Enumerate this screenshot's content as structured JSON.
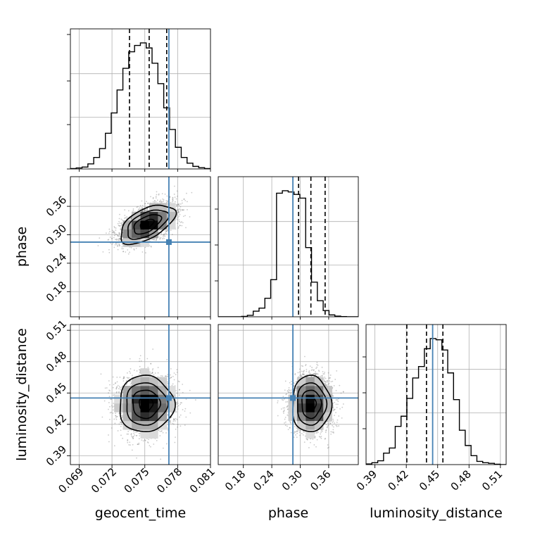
{
  "chart_data": {
    "type": "corner",
    "parameters": [
      "geocent_time",
      "phase",
      "luminosity_distance"
    ],
    "truth_color": "#4682b4",
    "hist_color": "#000000",
    "grid": true,
    "axes": {
      "geocent_time": {
        "label": "geocent_time",
        "range": [
          0.0682,
          0.081
        ],
        "ticks": [
          0.069,
          0.072,
          0.075,
          0.078,
          0.081
        ],
        "tick_labels": [
          "0.069",
          "0.072",
          "0.075",
          "0.078",
          "0.081"
        ],
        "truth": 0.0772
      },
      "phase": {
        "label": "phase",
        "range": [
          0.127,
          0.4225
        ],
        "ticks": [
          0.18,
          0.24,
          0.3,
          0.36
        ],
        "tick_labels": [
          "0.18",
          "0.24",
          "0.30",
          "0.36"
        ],
        "truth": 0.2845
      },
      "luminosity_distance": {
        "label": "luminosity_distance",
        "range": [
          0.3815,
          0.5155
        ],
        "ticks": [
          0.39,
          0.42,
          0.45,
          0.48,
          0.51
        ],
        "tick_labels": [
          "0.39",
          "0.42",
          "0.45",
          "0.48",
          "0.51"
        ],
        "truth": 0.4452
      }
    },
    "marginals": [
      {
        "parameter": "geocent_time",
        "quantiles": [
          0.0736,
          0.0754,
          0.077
        ],
        "bin_edges_start": 0.0682,
        "bin_width": 0.000533,
        "counts": [
          0.3,
          0.8,
          1.5,
          4,
          9,
          16,
          28,
          44,
          62,
          79,
          92,
          97,
          99,
          95,
          83,
          67,
          48,
          31,
          17,
          9,
          4.5,
          2,
          1,
          0.3
        ]
      },
      {
        "parameter": "phase",
        "quantiles": [
          0.2965,
          0.3225,
          0.3525
        ],
        "bin_edges_start": 0.127,
        "bin_width": 0.0123,
        "counts": [
          0,
          0,
          0,
          0,
          0.3,
          1.2,
          4.5,
          7,
          15,
          30,
          100,
          102,
          101,
          99,
          96,
          56,
          28,
          13,
          5,
          1.5,
          0.5,
          0.2,
          0,
          0
        ]
      },
      {
        "parameter": "luminosity_distance",
        "quantiles": [
          0.4205,
          0.4393,
          0.455
        ],
        "bin_edges_start": 0.3815,
        "bin_width": 0.00558,
        "counts": [
          0.5,
          1.5,
          3,
          9,
          13,
          30,
          38,
          52,
          68,
          77,
          91,
          99,
          98,
          90,
          72,
          51,
          27,
          15,
          7,
          2.5,
          1.5,
          1,
          0.3,
          0
        ]
      }
    ],
    "joint_posteriors": [
      {
        "x": "geocent_time",
        "y": "phase",
        "mean": [
          0.0752,
          0.3225
        ],
        "std": [
          0.00125,
          0.0205
        ],
        "correlation": 0.55
      },
      {
        "x": "geocent_time",
        "y": "luminosity_distance",
        "mean": [
          0.0751,
          0.4395
        ],
        "std": [
          0.00125,
          0.0135
        ],
        "correlation": 0.0
      },
      {
        "x": "phase",
        "y": "luminosity_distance",
        "mean": [
          0.323,
          0.4395
        ],
        "std": [
          0.0205,
          0.0135
        ],
        "correlation": 0.0
      }
    ]
  }
}
